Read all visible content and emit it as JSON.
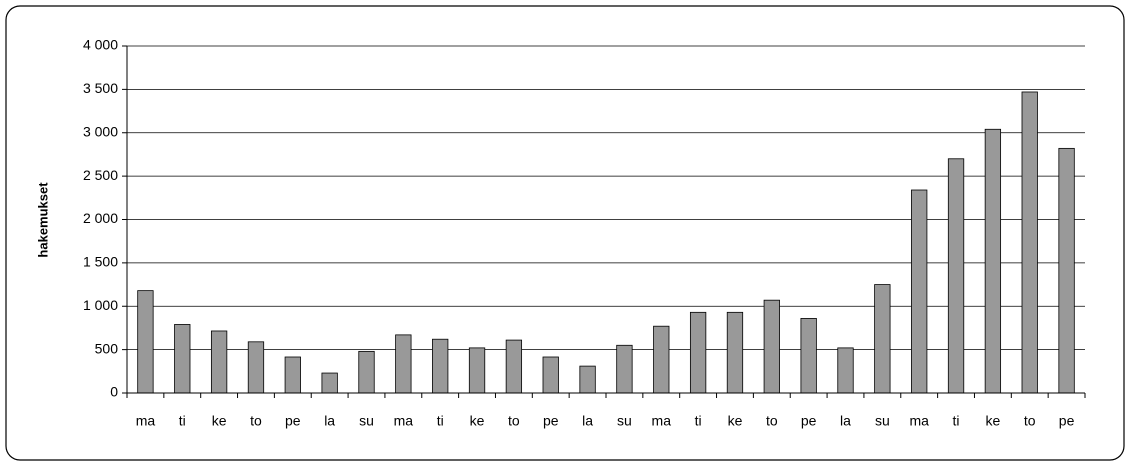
{
  "chart_data": {
    "type": "bar",
    "y_label": "hakemukset",
    "categories": [
      "ma",
      "ti",
      "ke",
      "to",
      "pe",
      "la",
      "su",
      "ma",
      "ti",
      "ke",
      "to",
      "pe",
      "la",
      "su",
      "ma",
      "ti",
      "ke",
      "to",
      "pe",
      "la",
      "su",
      "ma",
      "ti",
      "ke",
      "to",
      "pe"
    ],
    "values": [
      1180,
      790,
      715,
      590,
      415,
      230,
      480,
      670,
      620,
      520,
      610,
      415,
      310,
      550,
      770,
      930,
      930,
      1070,
      860,
      520,
      1250,
      2340,
      2700,
      3040,
      3470,
      2820
    ],
    "color": "#999999",
    "ylim": [
      0,
      4000
    ],
    "yticks": [
      0,
      500,
      {
        "value": 1000,
        "label": "1 000"
      },
      {
        "value": 1500,
        "label": "1 500"
      },
      {
        "value": 2000,
        "label": "2 000"
      },
      {
        "value": 2500,
        "label": "2 500"
      },
      {
        "value": 3000,
        "label": "3 000"
      },
      {
        "value": 3500,
        "label": "3 500"
      },
      {
        "value": 4000,
        "label": "4 000"
      }
    ],
    "grid": true
  }
}
